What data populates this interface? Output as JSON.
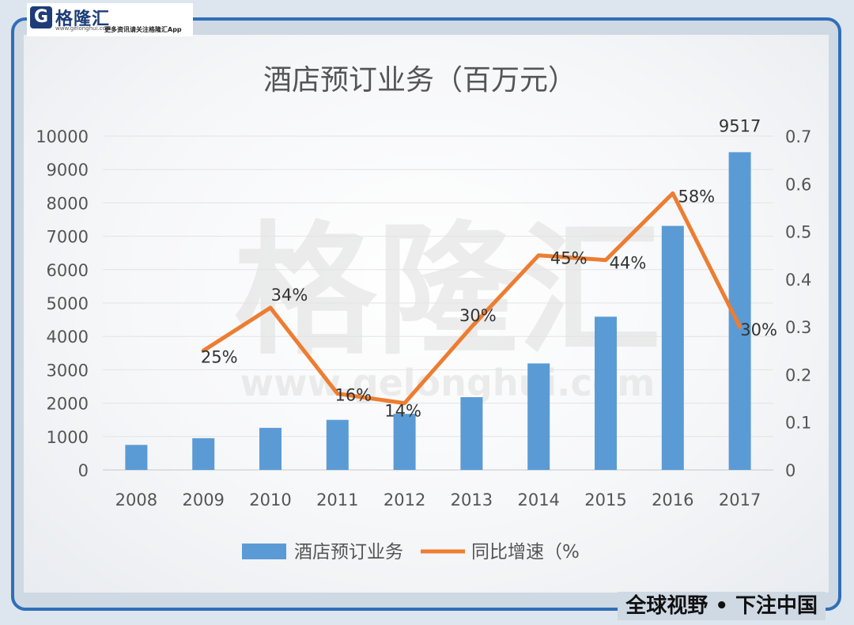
{
  "branding": {
    "logo_letter": "G",
    "logo_name": "格隆汇",
    "logo_url": "www.gelonghui.com",
    "logo_slogan": "更多资讯请关注格隆汇App",
    "watermark_main": "格隆汇",
    "watermark_url": "www.gelonghui.com",
    "footer_slogan": "全球视野 • 下注中国"
  },
  "colors": {
    "bar": "#5b9bd5",
    "line": "#ed7d31",
    "frame": "#2f6fb8"
  },
  "chart_data": {
    "type": "bar",
    "title": "酒店预订业务（百万元）",
    "categories": [
      "2008",
      "2009",
      "2010",
      "2011",
      "2012",
      "2013",
      "2014",
      "2015",
      "2016",
      "2017"
    ],
    "series": [
      {
        "name": "酒店预订业务",
        "type": "bar",
        "axis": "left",
        "values": [
          750,
          950,
          1260,
          1500,
          1680,
          2180,
          3190,
          4590,
          7310,
          9517
        ],
        "data_labels": [
          "",
          "",
          "",
          "",
          "",
          "",
          "",
          "",
          "",
          "9517"
        ]
      },
      {
        "name": "同比增速（%",
        "type": "line",
        "axis": "right",
        "values": [
          null,
          0.25,
          0.34,
          0.16,
          0.14,
          0.3,
          0.45,
          0.44,
          0.58,
          0.3
        ],
        "data_labels": [
          "",
          "25%",
          "34%",
          "16%",
          "14%",
          "30%",
          "45%",
          "44%",
          "58%",
          "30%"
        ]
      }
    ],
    "y_left": {
      "ylim": [
        0,
        10000
      ],
      "ticks": [
        "0",
        "1000",
        "2000",
        "3000",
        "4000",
        "5000",
        "6000",
        "7000",
        "8000",
        "9000",
        "10000"
      ]
    },
    "y_right": {
      "ylim": [
        0,
        0.7
      ],
      "ticks": [
        "0",
        "0.1",
        "0.2",
        "0.3",
        "0.4",
        "0.5",
        "0.6",
        "0.7"
      ]
    },
    "grid": true,
    "legend_position": "bottom"
  }
}
